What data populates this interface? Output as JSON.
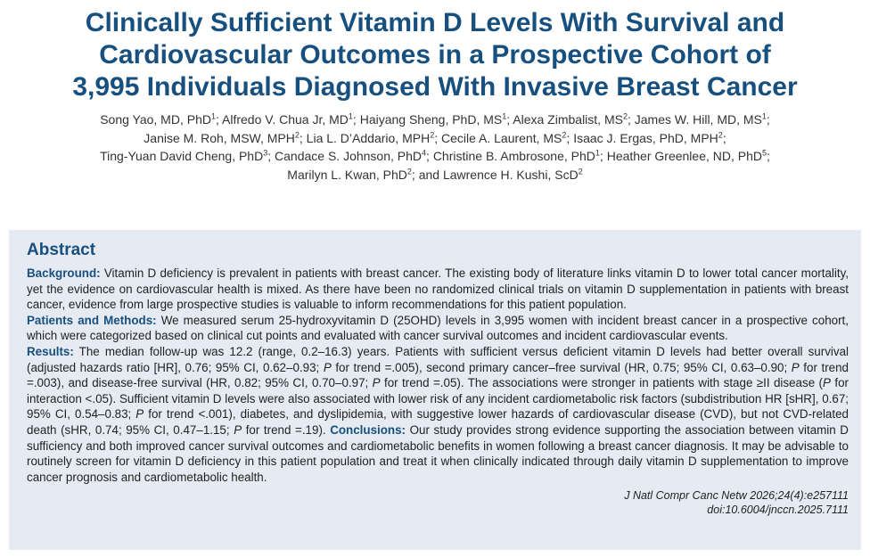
{
  "header": {
    "title_lines": [
      "Clinically Sufficient Vitamin D Levels With Survival and",
      "Cardiovascular Outcomes in a Prospective Cohort of",
      "3,995 Individuals Diagnosed With Invasive Breast Cancer"
    ],
    "author_lines": [
      [
        {
          "text": "Song Yao, MD, PhD",
          "sup": "1",
          "sep": ";"
        },
        {
          "text": "Alfredo V. Chua Jr, MD",
          "sup": "1",
          "sep": ";"
        },
        {
          "text": "Haiyang Sheng, PhD, MS",
          "sup": "1",
          "sep": ";"
        },
        {
          "text": "Alexa Zimbalist, MS",
          "sup": "2",
          "sep": ";"
        },
        {
          "text": "James W. Hill, MD, MS",
          "sup": "1",
          "sep": ";"
        }
      ],
      [
        {
          "text": "Janise M. Roh, MSW, MPH",
          "sup": "2",
          "sep": ";"
        },
        {
          "text": "Lia L. D’Addario, MPH",
          "sup": "2",
          "sep": ";"
        },
        {
          "text": "Cecile A. Laurent, MS",
          "sup": "2",
          "sep": ";"
        },
        {
          "text": "Isaac J. Ergas, PhD, MPH",
          "sup": "2",
          "sep": ";"
        }
      ],
      [
        {
          "text": "Ting-Yuan David Cheng, PhD",
          "sup": "3",
          "sep": ";"
        },
        {
          "text": "Candace S. Johnson, PhD",
          "sup": "4",
          "sep": ";"
        },
        {
          "text": "Christine B. Ambrosone, PhD",
          "sup": "1",
          "sep": ";"
        },
        {
          "text": "Heather Greenlee, ND, PhD",
          "sup": "5",
          "sep": ";"
        }
      ],
      [
        {
          "text": "Marilyn L. Kwan, PhD",
          "sup": "2",
          "sep": ";"
        },
        {
          "text": "and Lawrence H. Kushi, ScD",
          "sup": "2"
        }
      ]
    ]
  },
  "abstract": {
    "heading": "Abstract",
    "paragraphs": [
      [
        {
          "bold": "Background:"
        },
        " Vitamin D deficiency is prevalent in patients with breast cancer. The existing body of literature links vitamin D to lower total cancer mortality, yet the evidence on cardiovascular health is mixed. As there have been no randomized clinical trials on vitamin D supplementation in patients with breast cancer, evidence from large prospective studies is valuable to inform recommendations for this patient population."
      ],
      [
        {
          "bold": "Patients and Methods:"
        },
        " We measured serum 25-hydroxyvitamin D (25OHD) levels in 3,995 women with incident breast cancer in a prospective cohort, which were categorized based on clinical cut points and evaluated with cancer survival outcomes and incident cardiovascular events."
      ],
      [
        {
          "bold": "Results:"
        },
        " The median follow-up was 12.2 (range, 0.2–16.3) years. Patients with sufficient versus deficient vitamin D levels had better overall survival (adjusted hazards ratio [HR], 0.76; 95% CI, 0.62–0.93; ",
        {
          "italic": "P"
        },
        " for trend =.005), second primary cancer–free survival (HR, 0.75; 95% CI, 0.63–0.90; ",
        {
          "italic": "P"
        },
        " for trend =.003), and disease-free survival (HR, 0.82; 95% CI, 0.70–0.97; ",
        {
          "italic": "P"
        },
        " for trend =.05). The associations were stronger in patients with stage ≥II disease (",
        {
          "italic": "P"
        },
        " for interaction <.05). Sufficient vitamin D levels were also associated with lower risk of any incident cardiometabolic risk factors (subdistribution HR [sHR], 0.67; 95% CI, 0.54–0.83; ",
        {
          "italic": "P"
        },
        " for trend <.001), diabetes, and dyslipidemia, with suggestive lower hazards of cardiovascular disease (CVD), but not CVD-related death (sHR, 0.74; 95% CI, 0.47–1.15; ",
        {
          "italic": "P"
        },
        " for trend =.19). ",
        {
          "bold": "Conclusions:"
        },
        " Our study provides strong evidence supporting the association between vitamin D sufficiency and both improved cancer survival outcomes and cardiometabolic benefits in women following a breast cancer diagnosis. It may be advisable to routinely screen for vitamin D deficiency in this patient population and treat it when clinically indicated through daily vitamin D supplementation to improve cancer prognosis and cardiometabolic health."
      ]
    ],
    "citation_lines": [
      "J Natl Compr Canc Netw 2026;24(4):e257111",
      "doi:10.6004/jnccn.2025.7111"
    ]
  }
}
